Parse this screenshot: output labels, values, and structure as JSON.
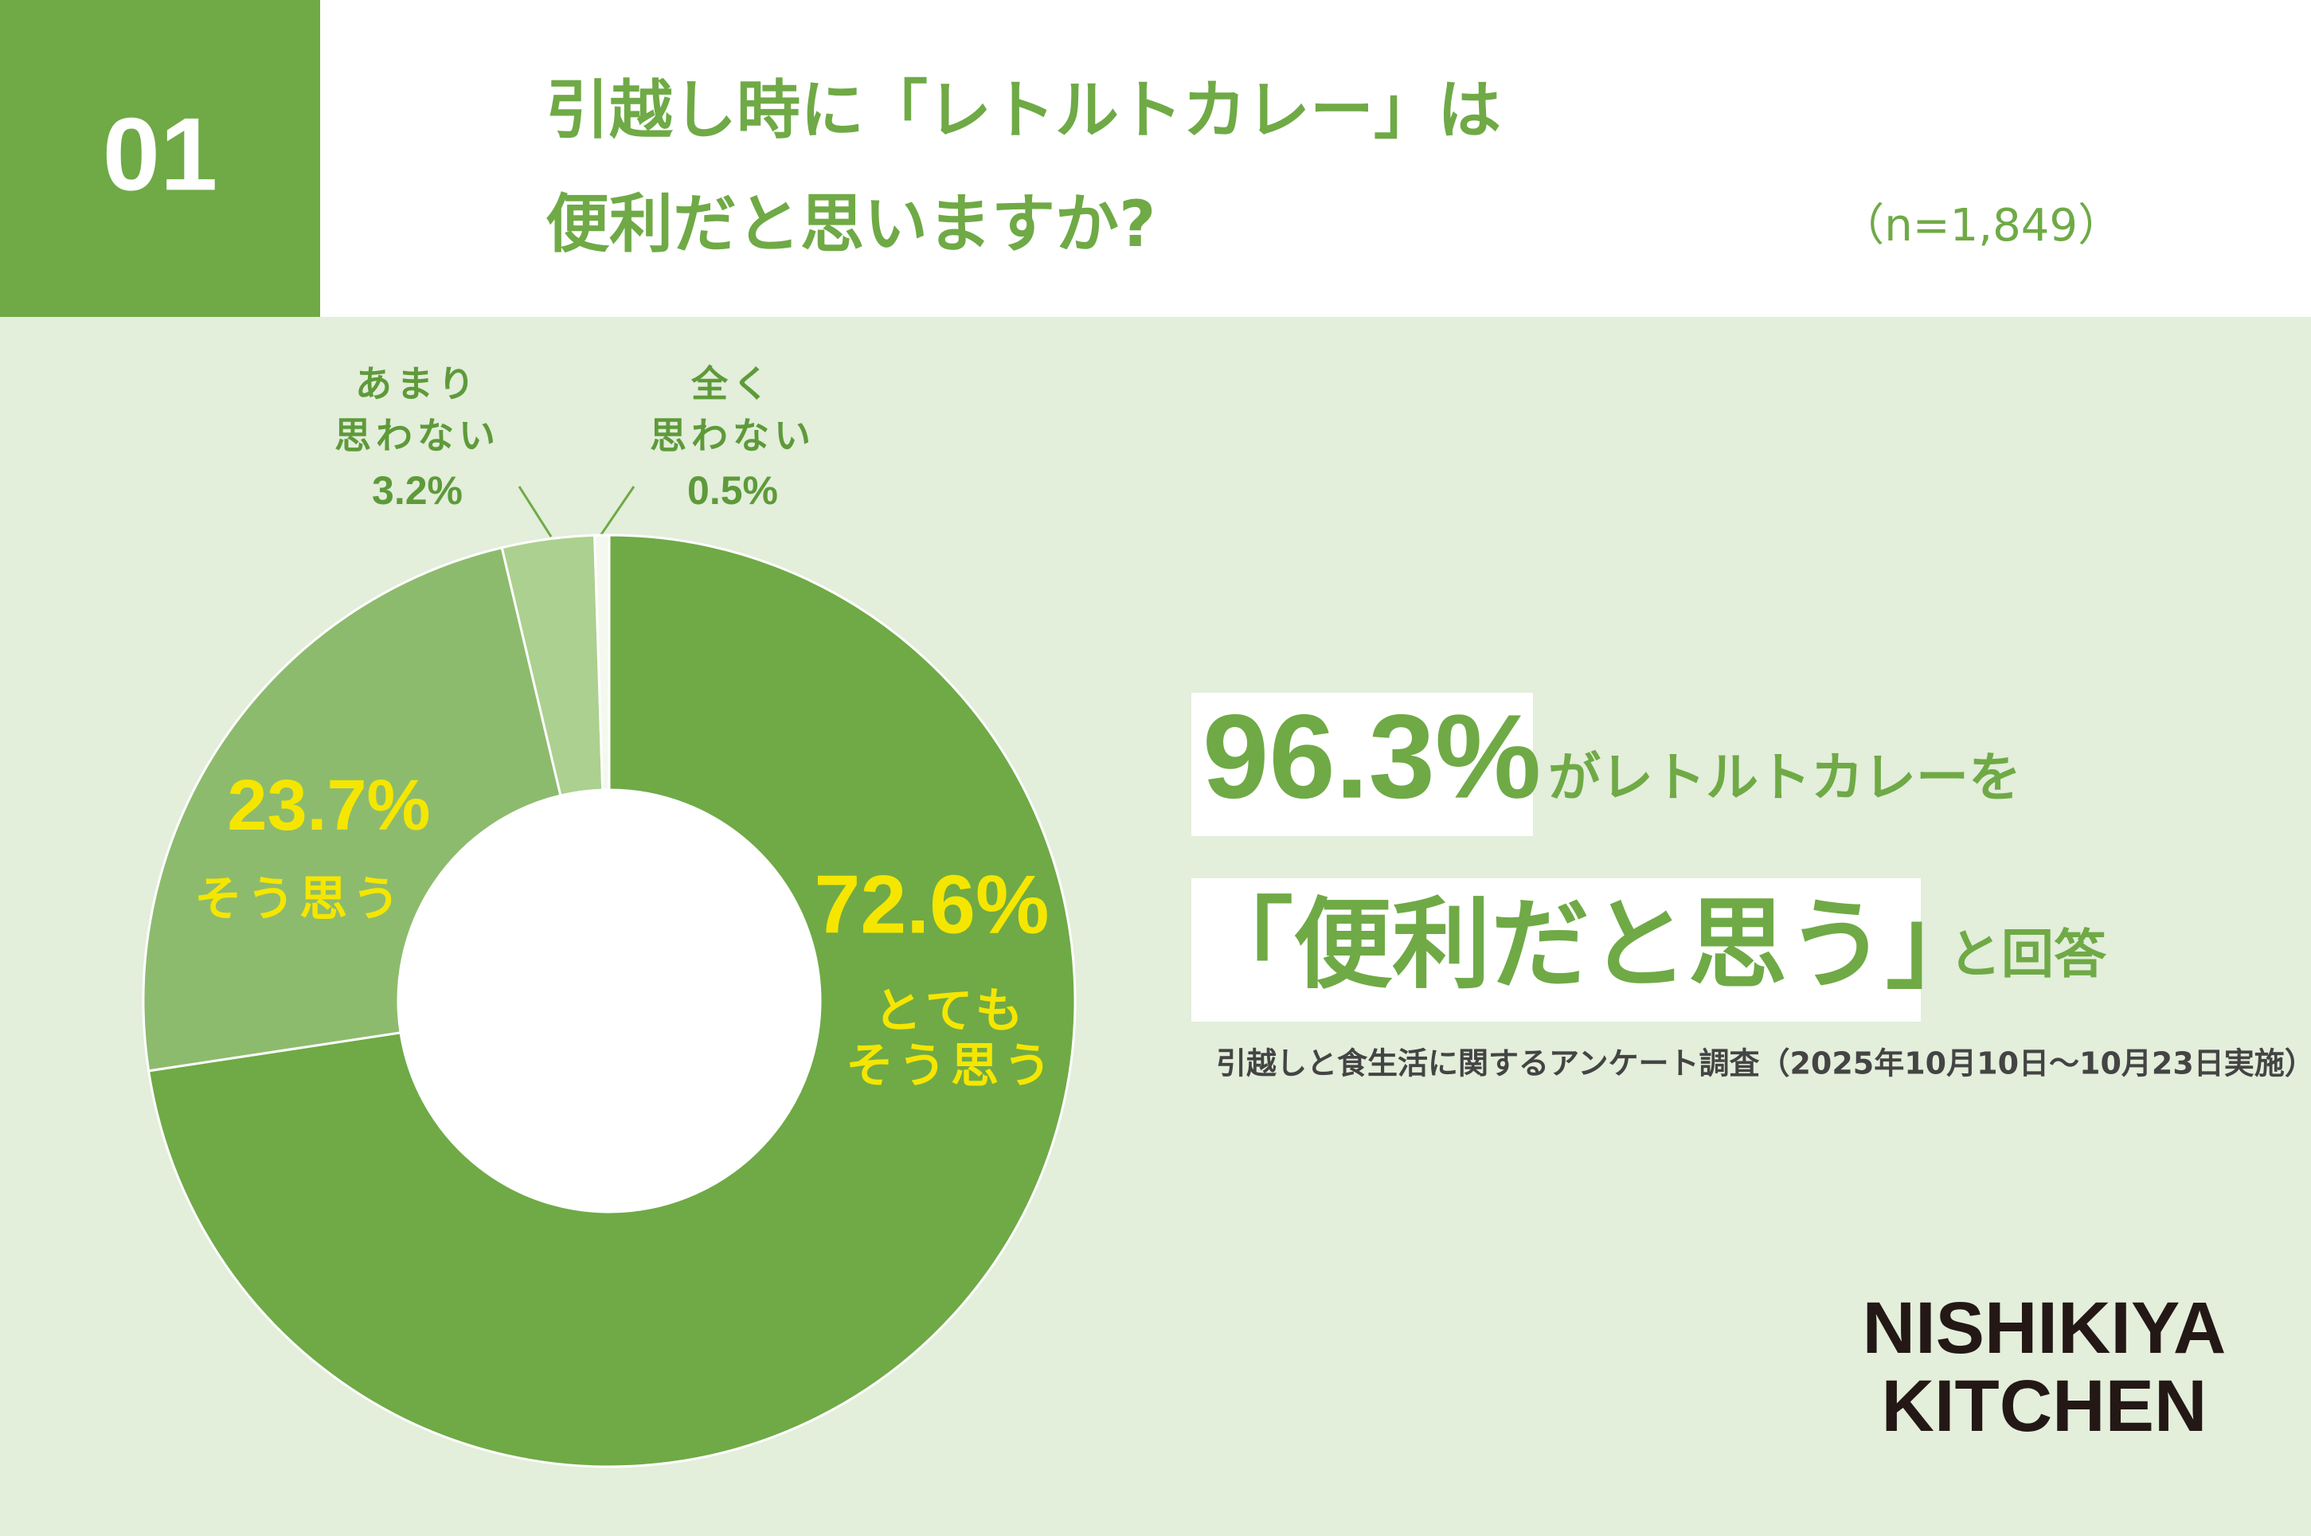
{
  "badge": "01",
  "title": "引越し時に「レトルトカレー」は\n便利だと思いますか?",
  "sample": "（n=1,849）",
  "chart_data": {
    "type": "pie",
    "donut": true,
    "categories": [
      "とても\nそう思う",
      "そう思う",
      "あまり\n思わない",
      "全く\n思わない"
    ],
    "values": [
      72.6,
      23.7,
      3.2,
      0.5
    ],
    "value_labels": [
      "72.6%",
      "23.7%",
      "3.2%",
      "0.5%"
    ],
    "colors": [
      "#6faa46",
      "#8dbb6d",
      "#acd08f",
      "#f4f8ef"
    ]
  },
  "callout": {
    "highlight": "96.3%",
    "text1": "がレトルトカレーを",
    "quote": "「便利だと思う」",
    "text2": "と回答"
  },
  "source": "引越しと食生活に関するアンケート調査（2025年10月10日〜10月23日実施）",
  "logo": "NISHIKIYA\nKITCHEN"
}
